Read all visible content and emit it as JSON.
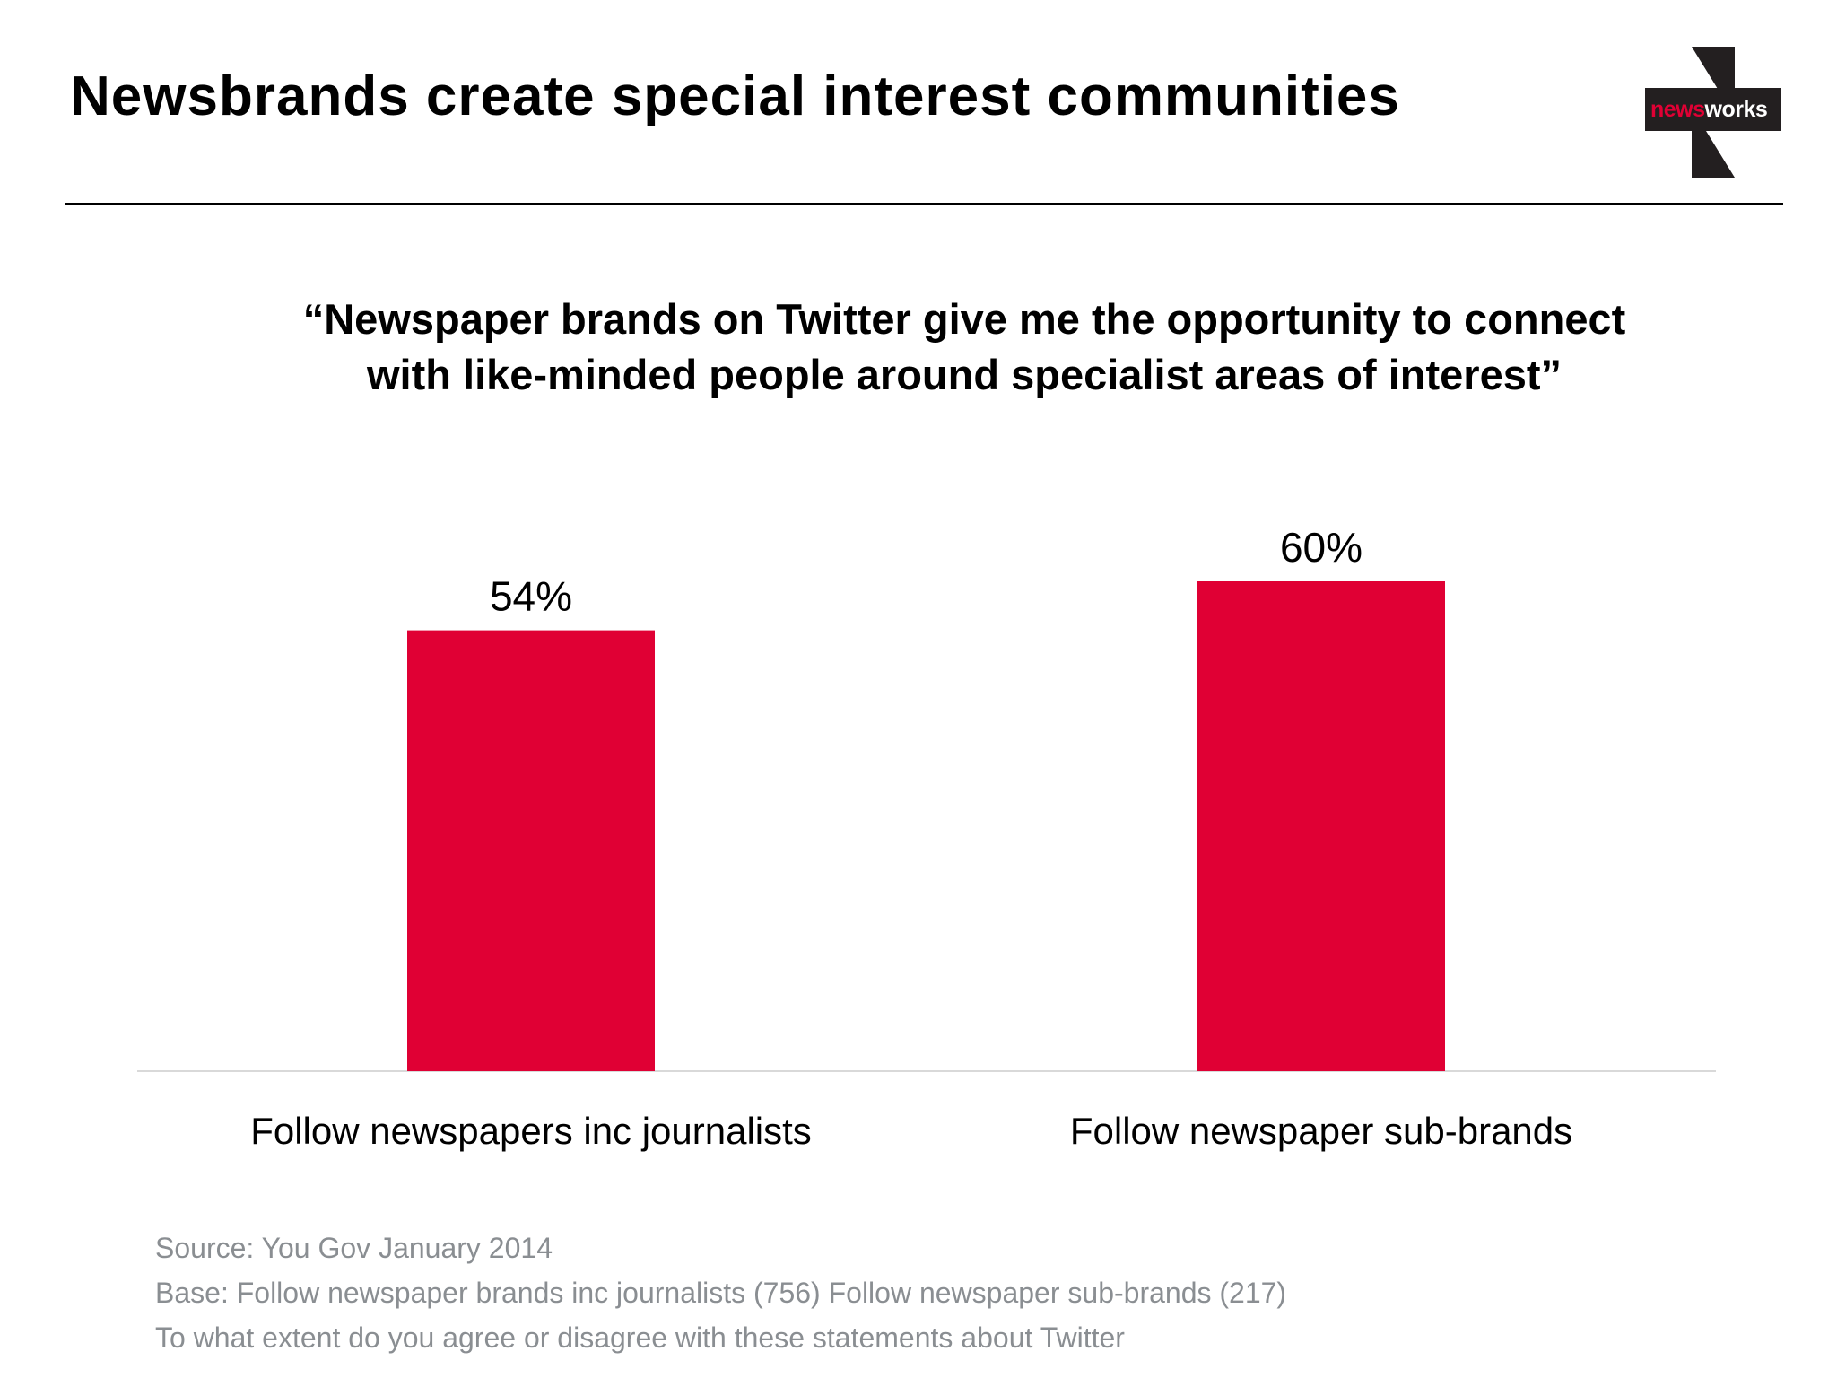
{
  "header": {
    "title": "Newsbrands create special interest communities",
    "logo": {
      "text_news": "news",
      "text_works": "works",
      "bg_color": "#231f20",
      "accent_color": "#e00034"
    }
  },
  "chart_data": {
    "type": "bar",
    "title": "“Newspaper brands on Twitter give me the opportunity to connect with like-minded people around specialist areas of interest”",
    "categories": [
      "Follow newspapers inc journalists",
      "Follow newspaper sub-brands"
    ],
    "values": [
      54,
      60
    ],
    "data_labels": [
      "54%",
      "60%"
    ],
    "unit": "%",
    "ylim": [
      0,
      100
    ],
    "grid": false,
    "legend": "none",
    "bar_color": "#e00034",
    "axis_color": "#d9d9d9"
  },
  "footer": {
    "source": "Source: You Gov January 2014",
    "base": "Base: Follow newspaper brands inc journalists (756) Follow newspaper sub-brands (217)",
    "question": "To what extent do you agree or disagree with these statements about Twitter"
  }
}
